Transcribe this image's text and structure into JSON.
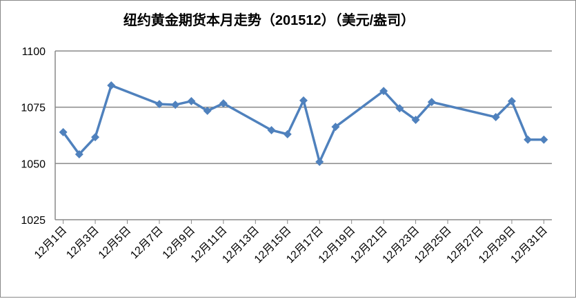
{
  "chart_data": {
    "type": "line",
    "title": "纽约黄金期货本月走势（201512）（美元/盎司）",
    "x": [
      1,
      2,
      3,
      4,
      7,
      8,
      9,
      10,
      11,
      14,
      15,
      16,
      17,
      18,
      21,
      22,
      23,
      24,
      28,
      29,
      30,
      31
    ],
    "series": [
      {
        "color": "#4f81bd",
        "values": [
          1063.9,
          1054.1,
          1061.7,
          1084.7,
          1076.4,
          1076.1,
          1077.7,
          1073.4,
          1076.7,
          1064.8,
          1063.0,
          1078.0,
          1050.7,
          1066.3,
          1082.2,
          1074.5,
          1069.4,
          1077.3,
          1070.6,
          1077.7,
          1060.6,
          1060.6
        ]
      }
    ],
    "xlim": [
      0.5,
      31.5
    ],
    "xticks": [
      {
        "value": 1,
        "label": "12月1日"
      },
      {
        "value": 3,
        "label": "12月3日"
      },
      {
        "value": 5,
        "label": "12月5日"
      },
      {
        "value": 7,
        "label": "12月7日"
      },
      {
        "value": 9,
        "label": "12月9日"
      },
      {
        "value": 11,
        "label": "12月11日"
      },
      {
        "value": 13,
        "label": "12月13日"
      },
      {
        "value": 15,
        "label": "12月15日"
      },
      {
        "value": 17,
        "label": "12月17日"
      },
      {
        "value": 19,
        "label": "12月19日"
      },
      {
        "value": 21,
        "label": "12月21日"
      },
      {
        "value": 23,
        "label": "12月23日"
      },
      {
        "value": 25,
        "label": "12月25日"
      },
      {
        "value": 27,
        "label": "12月27日"
      },
      {
        "value": 29,
        "label": "12月29日"
      },
      {
        "value": 31,
        "label": "12月31日"
      }
    ],
    "ylim": [
      1025,
      1100
    ],
    "yticks": [
      1025,
      1050,
      1075,
      1100
    ],
    "grid": true
  }
}
